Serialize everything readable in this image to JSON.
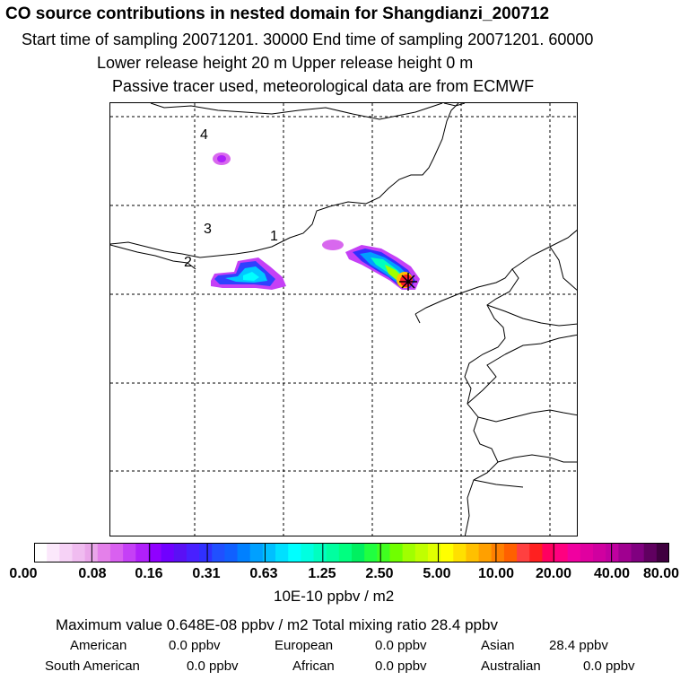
{
  "header": {
    "title": "CO  source contributions in nested domain for Shangdianzi_200712",
    "sampling": "Start time of sampling 20071201. 30000     End time of sampling 20071201. 60000",
    "release": "Lower release height   20 m          Upper release height    0 m",
    "info": "Passive tracer used, meteorological data are from ECMWF"
  },
  "map": {
    "labels": [
      "4",
      "3",
      "1",
      "2"
    ]
  },
  "colorbar": {
    "tick_labels": [
      "0.00",
      "0.08",
      "0.16",
      "0.31",
      "0.63",
      "1.25",
      "2.50",
      "5.00",
      "10.00",
      "20.00",
      "40.00",
      "80.00"
    ],
    "colors": [
      "#ffffff",
      "#fbe8fb",
      "#f6d2f6",
      "#f0bcf0",
      "#eaa6ea",
      "#e480ea",
      "#d960f0",
      "#c540f6",
      "#b020fa",
      "#9000ff",
      "#7000ff",
      "#5a10f5",
      "#4820ff",
      "#3030ff",
      "#2050ff",
      "#1060ff",
      "#0080ff",
      "#00a0ff",
      "#00c0ff",
      "#00e0ff",
      "#00ffff",
      "#00ffe0",
      "#00ffc0",
      "#00ffa0",
      "#00ff80",
      "#00f060",
      "#20ff40",
      "#40ff20",
      "#70ff00",
      "#a0ff00",
      "#c0ff00",
      "#e0ff00",
      "#ffff00",
      "#ffe000",
      "#ffc000",
      "#ffa000",
      "#ff8000",
      "#ff6000",
      "#ff4040",
      "#ff2020",
      "#ff0060",
      "#ff0080",
      "#f000a0",
      "#e000a0",
      "#d000a0",
      "#c000a0",
      "#a00090",
      "#800080",
      "#600060",
      "#400040"
    ],
    "units": "10E-10 ppbv / m2"
  },
  "summary": {
    "max_line": "Maximum value  0.648E-08 ppbv / m2       Total mixing ratio       28.4 ppbv",
    "regions": [
      {
        "name": "American",
        "value": "0.0 ppbv"
      },
      {
        "name": "European",
        "value": "0.0 ppbv"
      },
      {
        "name": "Asian",
        "value": "28.4 ppbv"
      },
      {
        "name": "South American",
        "value": "0.0 ppbv"
      },
      {
        "name": "African",
        "value": "0.0 ppbv"
      },
      {
        "name": "Australian",
        "value": "0.0 ppbv"
      }
    ]
  }
}
